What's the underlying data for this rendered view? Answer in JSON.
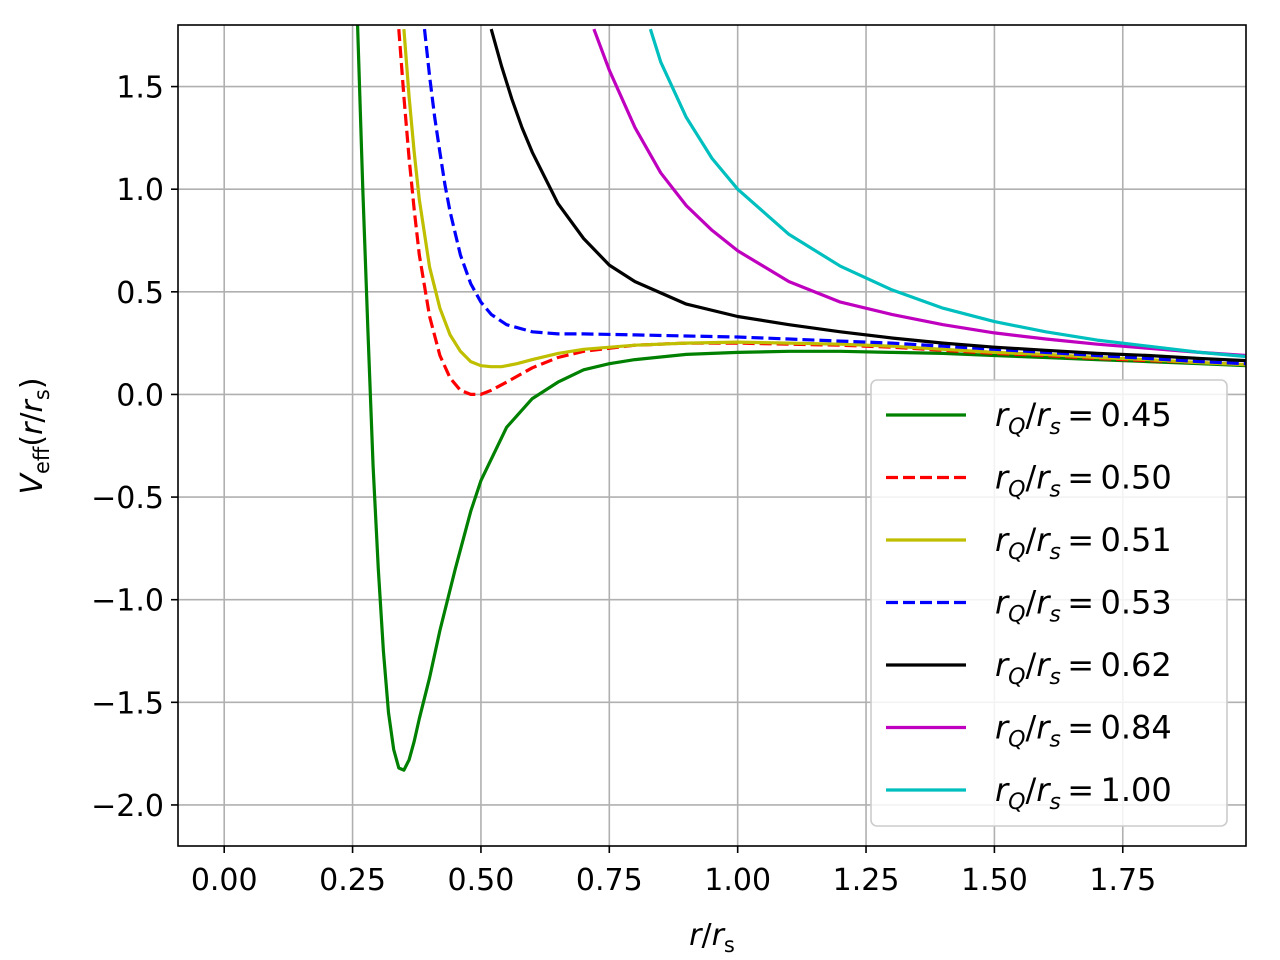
{
  "chart_data": {
    "type": "line",
    "title": "",
    "xlabel": "r/r_s",
    "ylabel": "V_eff(r/r_s)",
    "xlim": [
      -0.09,
      1.99
    ],
    "ylim": [
      -2.2,
      1.8
    ],
    "xticks": [
      0.0,
      0.25,
      0.5,
      0.75,
      1.0,
      1.25,
      1.5,
      1.75
    ],
    "xtick_labels": [
      "0.00",
      "0.25",
      "0.50",
      "0.75",
      "1.00",
      "1.25",
      "1.50",
      "1.75"
    ],
    "yticks": [
      -2.0,
      -1.5,
      -1.0,
      -0.5,
      0.0,
      0.5,
      1.0,
      1.5
    ],
    "ytick_labels": [
      "−2.0",
      "−1.5",
      "−1.0",
      "−0.5",
      "0.0",
      "0.5",
      "1.0",
      "1.5"
    ],
    "grid": true,
    "legend_position": "lower-right",
    "series": [
      {
        "name": "r_Q/r_s = 0.45",
        "color": "#008000",
        "dash": "solid",
        "x": [
          0.25,
          0.26,
          0.27,
          0.28,
          0.29,
          0.3,
          0.31,
          0.32,
          0.33,
          0.34,
          0.35,
          0.36,
          0.37,
          0.38,
          0.4,
          0.42,
          0.45,
          0.48,
          0.5,
          0.55,
          0.6,
          0.65,
          0.7,
          0.75,
          0.8,
          0.9,
          1.0,
          1.1,
          1.2,
          1.3,
          1.4,
          1.5,
          1.6,
          1.7,
          1.8,
          1.9,
          1.99
        ],
        "y": [
          2.5,
          1.78,
          1.0,
          0.3,
          -0.35,
          -0.85,
          -1.25,
          -1.55,
          -1.73,
          -1.82,
          -1.83,
          -1.78,
          -1.69,
          -1.58,
          -1.38,
          -1.15,
          -0.85,
          -0.57,
          -0.42,
          -0.16,
          -0.02,
          0.06,
          0.12,
          0.15,
          0.17,
          0.195,
          0.205,
          0.21,
          0.21,
          0.205,
          0.2,
          0.19,
          0.18,
          0.17,
          0.16,
          0.15,
          0.14
        ]
      },
      {
        "name": "r_Q/r_s = 0.50",
        "color": "#ff0000",
        "dash": "dashed",
        "x": [
          0.34,
          0.35,
          0.36,
          0.37,
          0.38,
          0.4,
          0.42,
          0.44,
          0.46,
          0.48,
          0.5,
          0.52,
          0.55,
          0.6,
          0.65,
          0.7,
          0.8,
          0.9,
          1.0,
          1.1,
          1.2,
          1.3,
          1.4,
          1.5,
          1.6,
          1.7,
          1.8,
          1.9,
          1.99
        ],
        "y": [
          1.78,
          1.45,
          1.15,
          0.9,
          0.68,
          0.38,
          0.19,
          0.08,
          0.02,
          0.0,
          0.0,
          0.02,
          0.06,
          0.13,
          0.18,
          0.21,
          0.24,
          0.25,
          0.25,
          0.245,
          0.24,
          0.23,
          0.215,
          0.2,
          0.19,
          0.175,
          0.165,
          0.155,
          0.145
        ]
      },
      {
        "name": "r_Q/r_s = 0.51",
        "color": "#bfbf00",
        "dash": "solid",
        "x": [
          0.35,
          0.36,
          0.37,
          0.38,
          0.4,
          0.42,
          0.44,
          0.46,
          0.48,
          0.5,
          0.52,
          0.54,
          0.57,
          0.6,
          0.65,
          0.7,
          0.8,
          0.9,
          1.0,
          1.1,
          1.2,
          1.3,
          1.4,
          1.5,
          1.6,
          1.7,
          1.8,
          1.9,
          1.99
        ],
        "y": [
          1.78,
          1.45,
          1.18,
          0.95,
          0.62,
          0.42,
          0.29,
          0.21,
          0.16,
          0.14,
          0.135,
          0.135,
          0.15,
          0.17,
          0.2,
          0.22,
          0.24,
          0.25,
          0.255,
          0.25,
          0.245,
          0.235,
          0.22,
          0.205,
          0.195,
          0.18,
          0.17,
          0.155,
          0.145
        ]
      },
      {
        "name": "r_Q/r_s = 0.53",
        "color": "#0000ff",
        "dash": "dashed",
        "x": [
          0.39,
          0.4,
          0.41,
          0.42,
          0.43,
          0.44,
          0.46,
          0.48,
          0.5,
          0.52,
          0.55,
          0.6,
          0.65,
          0.7,
          0.8,
          0.9,
          1.0,
          1.1,
          1.2,
          1.3,
          1.4,
          1.5,
          1.6,
          1.7,
          1.8,
          1.9,
          1.99
        ],
        "y": [
          1.78,
          1.55,
          1.35,
          1.18,
          1.02,
          0.89,
          0.68,
          0.54,
          0.45,
          0.39,
          0.34,
          0.305,
          0.295,
          0.295,
          0.29,
          0.285,
          0.28,
          0.27,
          0.26,
          0.25,
          0.235,
          0.22,
          0.205,
          0.19,
          0.175,
          0.16,
          0.15
        ]
      },
      {
        "name": "r_Q/r_s = 0.62",
        "color": "#000000",
        "dash": "solid",
        "x": [
          0.52,
          0.54,
          0.56,
          0.58,
          0.6,
          0.65,
          0.7,
          0.75,
          0.8,
          0.9,
          1.0,
          1.1,
          1.2,
          1.3,
          1.4,
          1.5,
          1.6,
          1.7,
          1.8,
          1.9,
          1.99
        ],
        "y": [
          1.78,
          1.6,
          1.44,
          1.3,
          1.18,
          0.93,
          0.76,
          0.63,
          0.55,
          0.44,
          0.38,
          0.34,
          0.305,
          0.275,
          0.25,
          0.23,
          0.215,
          0.2,
          0.19,
          0.175,
          0.165
        ]
      },
      {
        "name": "r_Q/r_s = 0.84",
        "color": "#bf00bf",
        "dash": "solid",
        "x": [
          0.72,
          0.75,
          0.8,
          0.85,
          0.9,
          0.95,
          1.0,
          1.1,
          1.2,
          1.3,
          1.4,
          1.5,
          1.6,
          1.7,
          1.8,
          1.9,
          1.99
        ],
        "y": [
          1.78,
          1.58,
          1.3,
          1.08,
          0.92,
          0.8,
          0.7,
          0.55,
          0.45,
          0.39,
          0.34,
          0.3,
          0.27,
          0.245,
          0.225,
          0.205,
          0.19
        ]
      },
      {
        "name": "r_Q/r_s = 1.00",
        "color": "#00bfbf",
        "dash": "solid",
        "x": [
          0.83,
          0.85,
          0.9,
          0.95,
          1.0,
          1.1,
          1.2,
          1.3,
          1.4,
          1.5,
          1.6,
          1.7,
          1.8,
          1.9,
          1.99
        ],
        "y": [
          1.78,
          1.62,
          1.35,
          1.15,
          1.0,
          0.78,
          0.625,
          0.51,
          0.42,
          0.355,
          0.305,
          0.265,
          0.235,
          0.205,
          0.185
        ]
      }
    ]
  }
}
